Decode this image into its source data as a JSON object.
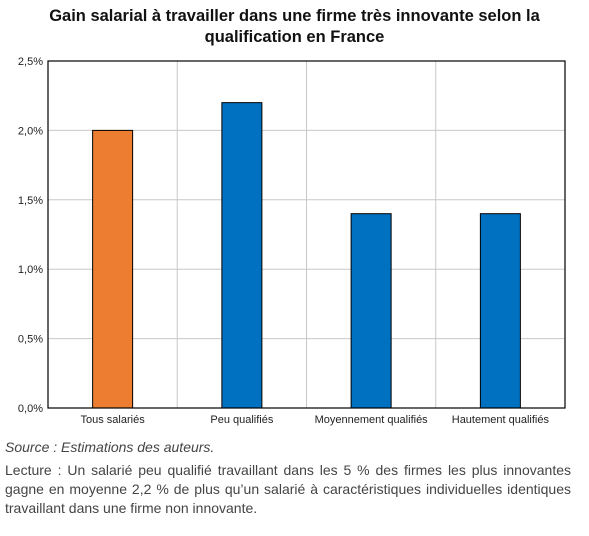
{
  "chart_data": {
    "type": "bar",
    "title": "Gain salarial à travailler dans une firme très innovante selon la qualification en France",
    "categories": [
      "Tous salariés",
      "Peu qualifiés",
      "Moyennement qualifiés",
      "Hautement qualifiés"
    ],
    "values": [
      2.0,
      2.2,
      1.4,
      1.4
    ],
    "bar_colors": [
      "#ED7D31",
      "#0070C0",
      "#0070C0",
      "#0070C0"
    ],
    "ylim": [
      0,
      2.5
    ],
    "yticks": [
      0,
      0.5,
      1.0,
      1.5,
      2.0,
      2.5
    ],
    "ytick_labels": [
      "0,0%",
      "0,5%",
      "1,0%",
      "1,5%",
      "2,0%",
      "2,5%"
    ],
    "grid": true,
    "xlabel": "",
    "ylabel": ""
  },
  "notes": {
    "source": "Source : Estimations des auteurs.",
    "lecture": "Lecture : Un salarié peu qualifié travaillant dans les 5 % des firmes les plus innovantes gagne en moyenne 2,2 % de plus qu’un salarié à caractéristiques individuelles identiques travaillant dans une firme non innovante."
  }
}
